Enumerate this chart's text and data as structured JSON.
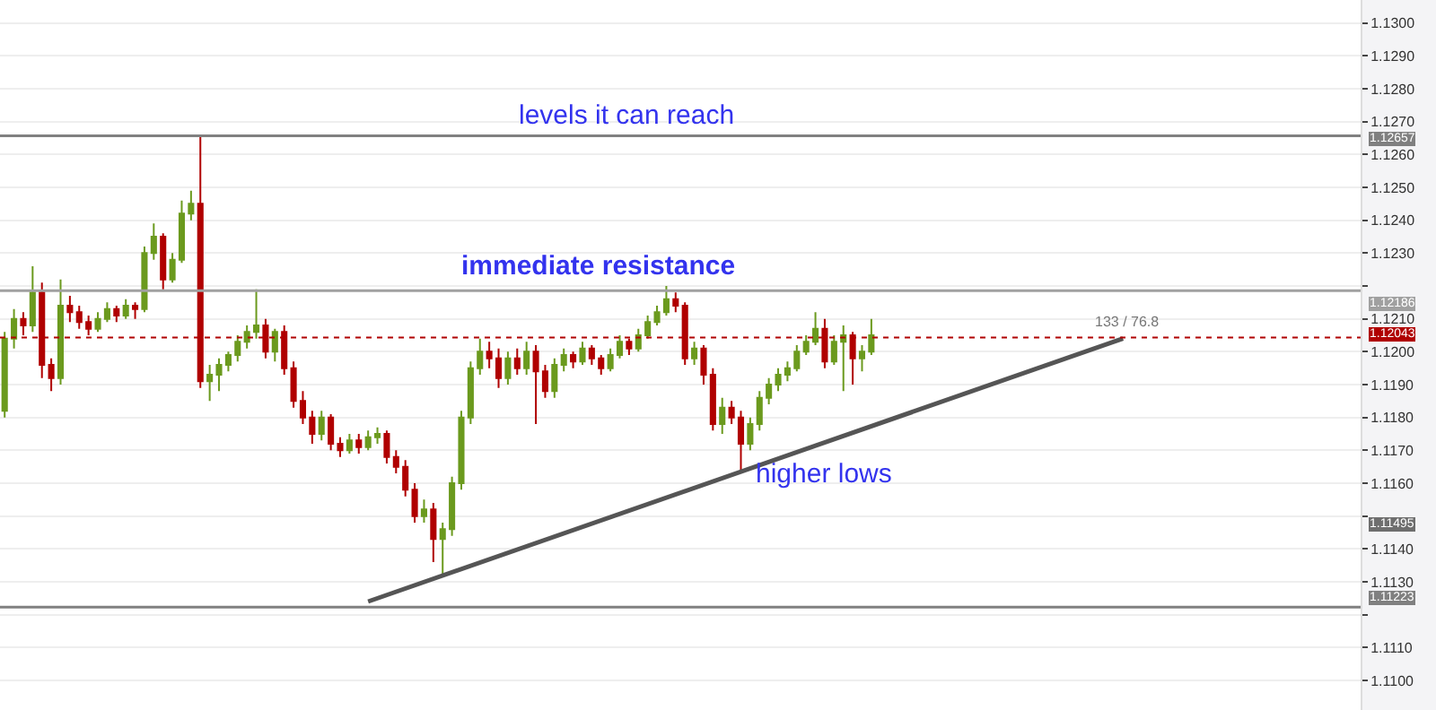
{
  "chart_data": {
    "type": "candlestick",
    "categories": [
      null,
      null,
      null,
      null,
      null,
      null,
      null,
      null,
      null,
      null,
      null,
      null,
      null,
      null,
      null,
      null,
      null,
      null,
      null,
      null,
      null,
      null,
      null,
      null,
      null,
      null,
      null,
      null,
      null,
      null,
      null,
      null,
      null,
      null,
      null,
      null,
      null,
      null,
      null,
      null,
      null,
      null,
      null,
      null,
      null,
      null,
      null,
      null,
      null,
      null,
      null,
      null,
      null,
      null,
      null,
      null,
      null,
      null,
      null,
      null,
      null,
      null,
      null,
      null,
      null,
      null,
      null,
      null,
      null,
      null,
      null,
      null,
      null,
      null,
      null,
      null,
      null,
      null,
      null,
      null,
      null,
      null,
      null,
      null,
      null,
      null,
      null,
      null,
      null,
      null,
      null,
      null,
      null,
      null,
      null,
      null,
      null,
      null,
      null,
      null,
      null,
      null,
      null,
      null,
      null,
      null,
      null,
      null,
      null,
      null,
      null,
      null,
      null,
      null,
      null,
      null,
      null,
      null,
      null,
      null,
      null,
      null,
      null,
      null,
      null,
      null,
      null,
      null,
      null,
      null,
      null,
      null,
      null,
      null,
      null,
      null,
      null,
      null,
      null,
      null,
      null,
      null,
      null,
      null,
      null,
      null
    ],
    "ohlc": [
      [
        1.1182,
        1.1206,
        1.118,
        1.1204
      ],
      [
        1.1204,
        1.1213,
        1.1201,
        1.121
      ],
      [
        1.121,
        1.1212,
        1.1205,
        1.1208
      ],
      [
        1.1208,
        1.1226,
        1.1206,
        1.1218
      ],
      [
        1.1218,
        1.1221,
        1.1192,
        1.1196
      ],
      [
        1.1196,
        1.1198,
        1.1188,
        1.1192
      ],
      [
        1.1192,
        1.1222,
        1.119,
        1.1214
      ],
      [
        1.1214,
        1.1217,
        1.1209,
        1.1212
      ],
      [
        1.1212,
        1.1214,
        1.1207,
        1.1209
      ],
      [
        1.1209,
        1.1211,
        1.1205,
        1.1207
      ],
      [
        1.1207,
        1.1212,
        1.1206,
        1.121
      ],
      [
        1.121,
        1.1215,
        1.1209,
        1.1213
      ],
      [
        1.1213,
        1.1214,
        1.1209,
        1.1211
      ],
      [
        1.1211,
        1.1216,
        1.121,
        1.1214
      ],
      [
        1.1214,
        1.1215,
        1.121,
        1.1213
      ],
      [
        1.1213,
        1.1232,
        1.1212,
        1.123
      ],
      [
        1.123,
        1.1239,
        1.1228,
        1.1235
      ],
      [
        1.1235,
        1.1236,
        1.1219,
        1.1222
      ],
      [
        1.1222,
        1.123,
        1.1221,
        1.1228
      ],
      [
        1.1228,
        1.1246,
        1.1227,
        1.1242
      ],
      [
        1.1242,
        1.1249,
        1.124,
        1.1245
      ],
      [
        1.1245,
        1.12657,
        1.1189,
        1.1191
      ],
      [
        1.1191,
        1.1196,
        1.1185,
        1.1193
      ],
      [
        1.1193,
        1.1198,
        1.1188,
        1.1196
      ],
      [
        1.1196,
        1.12,
        1.1194,
        1.1199
      ],
      [
        1.1199,
        1.1205,
        1.1197,
        1.1203
      ],
      [
        1.1203,
        1.1208,
        1.1201,
        1.1206
      ],
      [
        1.1206,
        1.1219,
        1.1204,
        1.1208
      ],
      [
        1.1208,
        1.121,
        1.1198,
        1.12
      ],
      [
        1.12,
        1.1207,
        1.1197,
        1.1206
      ],
      [
        1.1206,
        1.1208,
        1.1193,
        1.1195
      ],
      [
        1.1195,
        1.1197,
        1.1183,
        1.1185
      ],
      [
        1.1185,
        1.1188,
        1.1178,
        1.118
      ],
      [
        1.118,
        1.1182,
        1.1172,
        1.1175
      ],
      [
        1.1175,
        1.1182,
        1.1173,
        1.118
      ],
      [
        1.118,
        1.1181,
        1.117,
        1.1172
      ],
      [
        1.1172,
        1.1174,
        1.1168,
        1.117
      ],
      [
        1.117,
        1.1175,
        1.1169,
        1.1173
      ],
      [
        1.1173,
        1.1175,
        1.1169,
        1.1171
      ],
      [
        1.1171,
        1.1176,
        1.117,
        1.1174
      ],
      [
        1.1174,
        1.1177,
        1.1172,
        1.1175
      ],
      [
        1.1175,
        1.1176,
        1.1166,
        1.1168
      ],
      [
        1.1168,
        1.117,
        1.1163,
        1.1165
      ],
      [
        1.1165,
        1.1167,
        1.1156,
        1.1158
      ],
      [
        1.1158,
        1.116,
        1.1148,
        1.115
      ],
      [
        1.115,
        1.1155,
        1.1148,
        1.1152
      ],
      [
        1.1152,
        1.1154,
        1.1136,
        1.1143
      ],
      [
        1.1143,
        1.1148,
        1.1132,
        1.1146
      ],
      [
        1.1146,
        1.1162,
        1.1144,
        1.116
      ],
      [
        1.116,
        1.1182,
        1.1158,
        1.118
      ],
      [
        1.118,
        1.1197,
        1.1178,
        1.1195
      ],
      [
        1.1195,
        1.1204,
        1.1193,
        1.12
      ],
      [
        1.12,
        1.1203,
        1.1195,
        1.1198
      ],
      [
        1.1198,
        1.1201,
        1.1189,
        1.1192
      ],
      [
        1.1192,
        1.12,
        1.119,
        1.1198
      ],
      [
        1.1198,
        1.1201,
        1.1193,
        1.1195
      ],
      [
        1.1195,
        1.1203,
        1.1193,
        1.12
      ],
      [
        1.12,
        1.1202,
        1.1178,
        1.1194
      ],
      [
        1.1194,
        1.1196,
        1.1186,
        1.1188
      ],
      [
        1.1188,
        1.1198,
        1.1186,
        1.1196
      ],
      [
        1.1196,
        1.1201,
        1.1194,
        1.1199
      ],
      [
        1.1199,
        1.12,
        1.1195,
        1.1197
      ],
      [
        1.1197,
        1.1203,
        1.1196,
        1.1201
      ],
      [
        1.1201,
        1.1202,
        1.1196,
        1.1198
      ],
      [
        1.1198,
        1.1199,
        1.1193,
        1.1195
      ],
      [
        1.1195,
        1.1201,
        1.1194,
        1.1199
      ],
      [
        1.1199,
        1.1205,
        1.1198,
        1.1203
      ],
      [
        1.1203,
        1.1204,
        1.1199,
        1.1201
      ],
      [
        1.1201,
        1.1207,
        1.12,
        1.1205
      ],
      [
        1.1205,
        1.1211,
        1.1204,
        1.1209
      ],
      [
        1.1209,
        1.1214,
        1.1208,
        1.1212
      ],
      [
        1.1212,
        1.122,
        1.1211,
        1.1216
      ],
      [
        1.1216,
        1.1218,
        1.1212,
        1.1214
      ],
      [
        1.1214,
        1.1215,
        1.1196,
        1.1198
      ],
      [
        1.1198,
        1.1203,
        1.1196,
        1.1201
      ],
      [
        1.1201,
        1.1202,
        1.119,
        1.1193
      ],
      [
        1.1193,
        1.1195,
        1.1176,
        1.1178
      ],
      [
        1.1178,
        1.1186,
        1.1175,
        1.1183
      ],
      [
        1.1183,
        1.1185,
        1.1178,
        1.118
      ],
      [
        1.118,
        1.1182,
        1.1164,
        1.1172
      ],
      [
        1.1172,
        1.118,
        1.117,
        1.1178
      ],
      [
        1.1178,
        1.1188,
        1.1176,
        1.1186
      ],
      [
        1.1186,
        1.1192,
        1.1184,
        1.119
      ],
      [
        1.119,
        1.1195,
        1.1188,
        1.1193
      ],
      [
        1.1193,
        1.1197,
        1.1191,
        1.1195
      ],
      [
        1.1195,
        1.1202,
        1.1194,
        1.12
      ],
      [
        1.12,
        1.1205,
        1.1199,
        1.1203
      ],
      [
        1.1203,
        1.1212,
        1.1202,
        1.1207
      ],
      [
        1.1207,
        1.121,
        1.1195,
        1.1197
      ],
      [
        1.1197,
        1.1205,
        1.1196,
        1.1203
      ],
      [
        1.1203,
        1.1208,
        1.1188,
        1.1205
      ],
      [
        1.1205,
        1.1206,
        1.119,
        1.1198
      ],
      [
        1.1198,
        1.1202,
        1.1194,
        1.12
      ],
      [
        1.12,
        1.121,
        1.1199,
        1.1205
      ],
      null,
      null,
      null,
      null,
      null,
      null,
      null,
      null,
      null,
      null,
      null,
      null,
      null,
      null,
      null,
      null,
      null,
      null,
      null,
      null,
      null,
      null,
      null,
      null,
      null,
      null,
      null,
      null,
      null,
      null,
      null,
      null,
      null,
      null,
      null,
      null,
      null,
      null,
      null,
      null,
      null,
      null,
      null,
      null,
      null,
      null,
      null,
      null,
      null,
      null,
      null,
      null
    ],
    "series": [
      {
        "type": "line",
        "values": [
          null,
          null,
          null,
          null,
          null,
          null,
          null,
          null,
          null,
          null,
          null,
          null,
          null,
          null,
          null,
          null,
          null,
          null,
          null,
          null,
          null,
          null,
          null,
          null,
          null,
          null,
          null,
          null,
          null,
          null,
          null,
          null,
          null,
          null,
          null,
          null,
          null,
          null,
          null,
          1.1124,
          null,
          null,
          null,
          null,
          null,
          null,
          null,
          null,
          null,
          null,
          null,
          null,
          null,
          null,
          null,
          null,
          null,
          null,
          null,
          null,
          null,
          null,
          null,
          null,
          null,
          null,
          null,
          null,
          null,
          null,
          null,
          null,
          null,
          null,
          null,
          null,
          null,
          null,
          null,
          null,
          null,
          null,
          null,
          null,
          null,
          null,
          null,
          null,
          null,
          null,
          null,
          null,
          null,
          null,
          null,
          null,
          null,
          null,
          null,
          null,
          null,
          null,
          null,
          null,
          null,
          null,
          null,
          null,
          null,
          null,
          null,
          null,
          null,
          null,
          null,
          null,
          null,
          null,
          null,
          null,
          1.1204,
          null,
          null,
          null,
          null,
          null,
          null,
          null,
          null,
          null,
          null,
          null,
          null,
          null,
          null,
          null,
          null,
          null,
          null,
          null,
          null,
          null,
          null,
          null,
          null,
          null
        ],
        "color": "#555555"
      }
    ],
    "ylim": [
      1.1091,
      1.1307
    ],
    "yticks": [
      {
        "value": 1.11,
        "label": "1.1100"
      },
      {
        "value": 1.111,
        "label": "1.1110"
      },
      {
        "value": 1.112,
        "label": null
      },
      {
        "value": 1.113,
        "label": "1.1130"
      },
      {
        "value": 1.114,
        "label": "1.1140"
      },
      {
        "value": 1.115,
        "label": null
      },
      {
        "value": 1.116,
        "label": "1.1160"
      },
      {
        "value": 1.117,
        "label": "1.1170"
      },
      {
        "value": 1.118,
        "label": "1.1180"
      },
      {
        "value": 1.119,
        "label": "1.1190"
      },
      {
        "value": 1.12,
        "label": "1.1200"
      },
      {
        "value": 1.121,
        "label": "1.1210"
      },
      {
        "value": 1.122,
        "label": null
      },
      {
        "value": 1.123,
        "label": "1.1230"
      },
      {
        "value": 1.124,
        "label": "1.1240"
      },
      {
        "value": 1.125,
        "label": "1.1250"
      },
      {
        "value": 1.126,
        "label": "1.1260"
      },
      {
        "value": 1.127,
        "label": "1.1270"
      },
      {
        "value": 1.128,
        "label": "1.1280"
      },
      {
        "value": 1.129,
        "label": "1.1290"
      },
      {
        "value": 1.13,
        "label": "1.1300"
      }
    ],
    "ref_lines": [
      {
        "axis": "y",
        "value": 1.12657,
        "label": "1.12657",
        "color": "#808080",
        "line_style": "solid"
      },
      {
        "axis": "y",
        "value": 1.12186,
        "label": "1.12186",
        "color": "#a0a0a0",
        "line_style": "solid"
      },
      {
        "axis": "y",
        "value": 1.12043,
        "label": "1.12043",
        "color": "#b00000",
        "line_style": "dotted"
      },
      {
        "axis": "y",
        "value": 1.11223,
        "label": "1.11223",
        "color": "#808080",
        "line_style": "solid"
      }
    ],
    "annotations": [
      "levels it can reach",
      "immediate resistance",
      "higher lows",
      "133 / 76.8",
      "1.11495"
    ],
    "grid": "y",
    "tick_labels": "y"
  }
}
